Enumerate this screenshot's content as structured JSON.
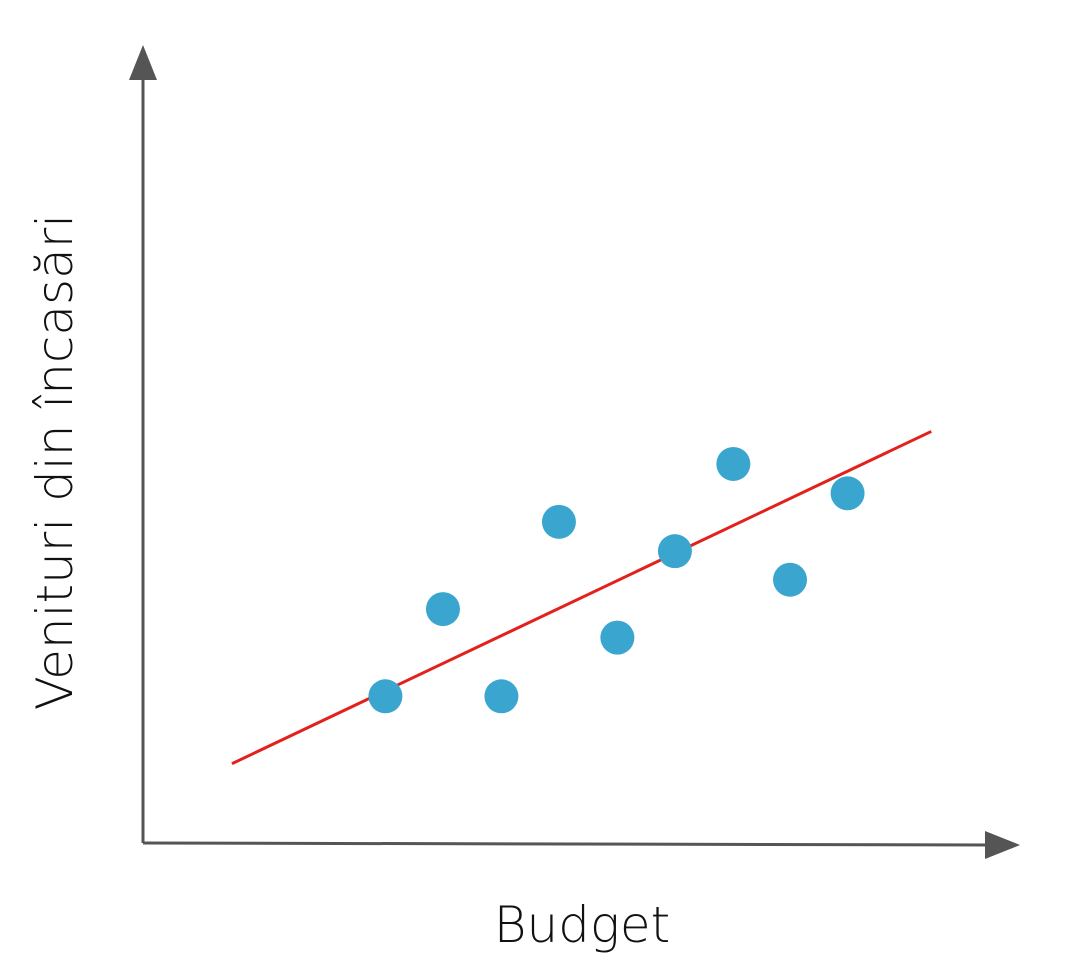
{
  "chart_data": {
    "type": "scatter",
    "x_label": "Budget",
    "y_label": "Venituri din încasări",
    "xlim": [
      0,
      10
    ],
    "ylim": [
      0,
      10
    ],
    "series": [
      {
        "color": "#3aa6cf",
        "x": [
          2.78,
          3.44,
          4.11,
          4.77,
          5.44,
          6.1,
          6.77,
          7.42,
          8.08
        ],
        "values": [
          1.85,
          2.95,
          1.85,
          4.05,
          2.59,
          3.68,
          4.78,
          3.32,
          4.41
        ]
      }
    ],
    "trend_line": {
      "color": "#e3211c",
      "x": [
        1.02,
        9.04
      ],
      "values": [
        1.0,
        5.19
      ]
    }
  }
}
